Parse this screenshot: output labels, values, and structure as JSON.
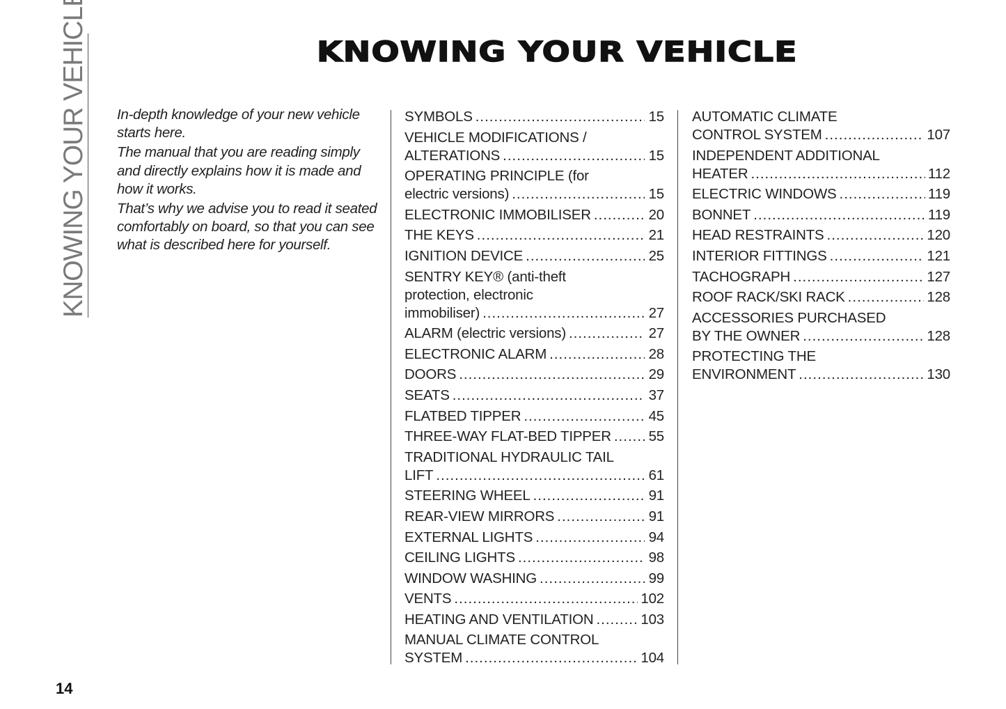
{
  "side_tab": "KNOWING YOUR VEHICLE",
  "title": "KNOWING YOUR VEHICLE",
  "intro": [
    "In-depth knowledge of your new vehicle starts here.",
    "The manual that you are reading simply and directly explains how it is made and how it works.",
    "That’s why we advise you to read it seated comfortably on board, so that you can see what is described here for yourself."
  ],
  "toc_left": [
    {
      "pre": [],
      "text": "SYMBOLS",
      "page": "15"
    },
    {
      "pre": [
        "VEHICLE MODIFICATIONS /"
      ],
      "text": "ALTERATIONS",
      "page": "15"
    },
    {
      "pre": [
        "OPERATING PRINCIPLE (for"
      ],
      "text": "electric versions)",
      "page": "15"
    },
    {
      "pre": [],
      "text": "ELECTRONIC IMMOBILISER",
      "page": "20"
    },
    {
      "pre": [],
      "text": "THE KEYS",
      "page": "21"
    },
    {
      "pre": [],
      "text": "IGNITION DEVICE",
      "page": "25"
    },
    {
      "pre": [
        "SENTRY KEY® (anti-theft",
        "protection,  electronic"
      ],
      "text": "immobiliser)",
      "page": "27"
    },
    {
      "pre": [],
      "text": "ALARM (electric versions)",
      "page": "27"
    },
    {
      "pre": [],
      "text": "ELECTRONIC ALARM",
      "page": "28"
    },
    {
      "pre": [],
      "text": "DOORS",
      "page": "29"
    },
    {
      "pre": [],
      "text": "SEATS",
      "page": "37"
    },
    {
      "pre": [],
      "text": "FLATBED TIPPER",
      "page": "45"
    },
    {
      "pre": [],
      "text": "THREE-WAY FLAT-BED TIPPER",
      "page": "55"
    },
    {
      "pre": [
        "TRADITIONAL HYDRAULIC TAIL"
      ],
      "text": "LIFT",
      "page": "61"
    },
    {
      "pre": [],
      "text": "STEERING WHEEL",
      "page": "91"
    },
    {
      "pre": [],
      "text": "REAR-VIEW MIRRORS",
      "page": "91"
    },
    {
      "pre": [],
      "text": "EXTERNAL LIGHTS",
      "page": "94"
    },
    {
      "pre": [],
      "text": "CEILING LIGHTS",
      "page": "98"
    },
    {
      "pre": [],
      "text": "WINDOW WASHING",
      "page": "99"
    },
    {
      "pre": [],
      "text": "VENTS",
      "page": "102"
    },
    {
      "pre": [],
      "text": "HEATING AND VENTILATION",
      "page": "103"
    },
    {
      "pre": [
        "MANUAL CLIMATE CONTROL"
      ],
      "text": "SYSTEM",
      "page": "104"
    }
  ],
  "toc_right": [
    {
      "pre": [
        "AUTOMATIC CLIMATE"
      ],
      "text": "CONTROL SYSTEM",
      "page": "107"
    },
    {
      "pre": [
        "INDEPENDENT ADDITIONAL"
      ],
      "text": "HEATER",
      "page": "112"
    },
    {
      "pre": [],
      "text": "ELECTRIC WINDOWS",
      "page": "119"
    },
    {
      "pre": [],
      "text": "BONNET",
      "page": "119"
    },
    {
      "pre": [],
      "text": "HEAD RESTRAINTS",
      "page": "120"
    },
    {
      "pre": [],
      "text": "INTERIOR FITTINGS",
      "page": "121"
    },
    {
      "pre": [],
      "text": "TACHOGRAPH",
      "page": "127"
    },
    {
      "pre": [],
      "text": "ROOF RACK/SKI RACK",
      "page": "128"
    },
    {
      "pre": [
        "ACCESSORIES PURCHASED"
      ],
      "text": "BY THE OWNER",
      "page": "128"
    },
    {
      "pre": [
        "PROTECTING THE"
      ],
      "text": "ENVIRONMENT",
      "page": "130"
    }
  ],
  "page_number": "14"
}
